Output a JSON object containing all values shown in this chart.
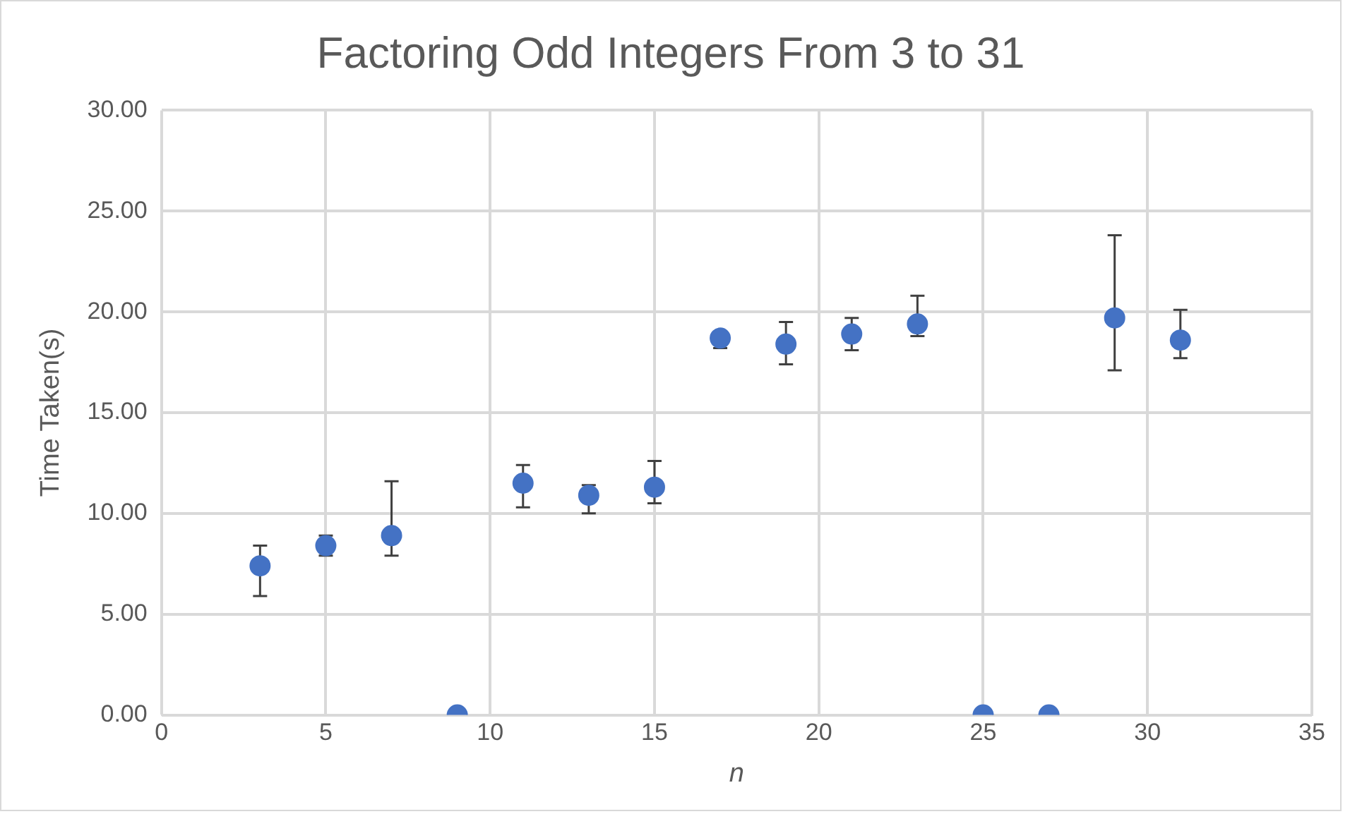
{
  "chart_data": {
    "type": "scatter",
    "title": "Factoring Odd Integers From 3 to 31",
    "xlabel": "n",
    "ylabel": "Time Taken(s)",
    "x": [
      3,
      5,
      7,
      9,
      11,
      13,
      15,
      17,
      19,
      21,
      23,
      25,
      27,
      29,
      31
    ],
    "series": [
      {
        "color": "#4472c4",
        "values": [
          7.4,
          8.4,
          8.9,
          0,
          11.5,
          10.9,
          11.3,
          18.7,
          18.4,
          18.9,
          19.4,
          0,
          0,
          19.7,
          18.6
        ],
        "errors": [
          [
            5.9,
            8.4
          ],
          [
            7.9,
            8.9
          ],
          [
            7.9,
            11.6
          ],
          null,
          [
            10.3,
            12.4
          ],
          [
            10.0,
            11.4
          ],
          [
            10.5,
            12.6
          ],
          [
            18.2,
            19.0
          ],
          [
            17.4,
            19.5
          ],
          [
            18.1,
            19.7
          ],
          [
            18.8,
            20.8
          ],
          null,
          null,
          [
            17.1,
            23.8
          ],
          [
            17.7,
            20.1
          ]
        ]
      }
    ],
    "xlim": [
      0,
      35
    ],
    "xticks": [
      0,
      5,
      10,
      15,
      20,
      25,
      30,
      35
    ],
    "ylim": [
      0,
      30
    ],
    "yticks": [
      {
        "value": 0,
        "label": "0.00"
      },
      {
        "value": 5,
        "label": "5.00"
      },
      {
        "value": 10,
        "label": "10.00"
      },
      {
        "value": 15,
        "label": "15.00"
      },
      {
        "value": 20,
        "label": "20.00"
      },
      {
        "value": 25,
        "label": "25.00"
      },
      {
        "value": 30,
        "label": "30.00"
      }
    ],
    "grid": true,
    "legend": false,
    "marker": "circle"
  }
}
